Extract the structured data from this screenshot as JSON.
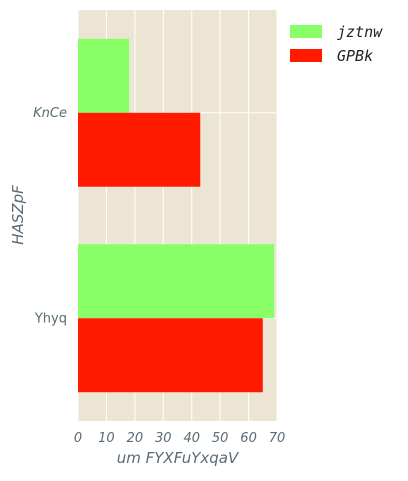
{
  "chart_data": {
    "type": "bar",
    "orientation": "horizontal",
    "categories": [
      "KnCe",
      "Yhyq"
    ],
    "category_italic": [
      true,
      false
    ],
    "series": [
      {
        "name": "jztnw",
        "values": [
          18,
          69
        ],
        "color": "#88ff66"
      },
      {
        "name": "GPBk",
        "values": [
          43,
          65
        ],
        "color": "#ff1a00"
      }
    ],
    "xlabel": "um FYXFuYxqaV",
    "ylabel": "HASZpF",
    "xlim": [
      0,
      70
    ],
    "xticks": [
      "0",
      "10",
      "20",
      "30",
      "40",
      "50",
      "60",
      "70"
    ],
    "grid": true,
    "legend_position": "outside-top-right",
    "colors": {
      "plot_background": "#ede5d4",
      "grid": "#ffffff",
      "tick_text": "#5a6b75"
    }
  }
}
